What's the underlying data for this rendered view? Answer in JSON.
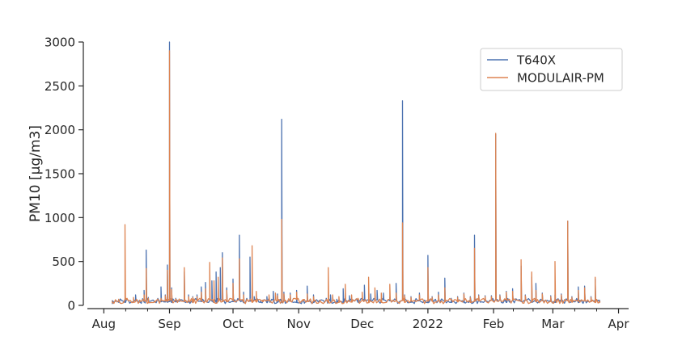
{
  "chart_data": {
    "type": "line",
    "title": "",
    "xlabel": "",
    "ylabel": "PM10 [µg/m3]",
    "ylim": [
      0,
      3000
    ],
    "xlim": [
      "2021-07-25",
      "2022-04-05"
    ],
    "grid": false,
    "legend_position": "top-right",
    "y_ticks": [
      0,
      500,
      1000,
      1500,
      2000,
      2500,
      3000
    ],
    "x_ticks": [
      {
        "date": "2021-08-01",
        "label": "Aug"
      },
      {
        "date": "2021-09-01",
        "label": "Sep"
      },
      {
        "date": "2021-10-01",
        "label": "Oct"
      },
      {
        "date": "2021-11-01",
        "label": "Nov"
      },
      {
        "date": "2021-12-01",
        "label": "Dec"
      },
      {
        "date": "2022-01-01",
        "label": "2022"
      },
      {
        "date": "2022-02-01",
        "label": "Feb"
      },
      {
        "date": "2022-03-01",
        "label": "Mar"
      },
      {
        "date": "2022-04-01",
        "label": "Apr"
      }
    ],
    "series": [
      {
        "name": "T640X",
        "color": "#4c72b0",
        "points": [
          [
            "2021-08-05",
            20
          ],
          [
            "2021-08-08",
            60
          ],
          [
            "2021-08-11",
            70
          ],
          [
            "2021-08-14",
            40
          ],
          [
            "2021-08-16",
            120
          ],
          [
            "2021-08-18",
            60
          ],
          [
            "2021-08-20",
            170
          ],
          [
            "2021-08-21",
            630
          ],
          [
            "2021-08-22",
            90
          ],
          [
            "2021-08-25",
            50
          ],
          [
            "2021-08-28",
            210
          ],
          [
            "2021-08-30",
            120
          ],
          [
            "2021-08-31",
            460
          ],
          [
            "2021-09-01",
            3000
          ],
          [
            "2021-09-02",
            200
          ],
          [
            "2021-09-04",
            80
          ],
          [
            "2021-09-08",
            380
          ],
          [
            "2021-09-10",
            120
          ],
          [
            "2021-09-12",
            100
          ],
          [
            "2021-09-14",
            120
          ],
          [
            "2021-09-16",
            210
          ],
          [
            "2021-09-18",
            260
          ],
          [
            "2021-09-21",
            280
          ],
          [
            "2021-09-23",
            380
          ],
          [
            "2021-09-25",
            430
          ],
          [
            "2021-09-26",
            600
          ],
          [
            "2021-09-28",
            200
          ],
          [
            "2021-10-01",
            300
          ],
          [
            "2021-10-04",
            800
          ],
          [
            "2021-10-06",
            150
          ],
          [
            "2021-10-09",
            550
          ],
          [
            "2021-10-11",
            100
          ],
          [
            "2021-10-14",
            50
          ],
          [
            "2021-10-17",
            100
          ],
          [
            "2021-10-20",
            160
          ],
          [
            "2021-10-22",
            130
          ],
          [
            "2021-10-24",
            2120
          ],
          [
            "2021-10-25",
            150
          ],
          [
            "2021-10-28",
            140
          ],
          [
            "2021-10-31",
            170
          ],
          [
            "2021-11-03",
            60
          ],
          [
            "2021-11-05",
            220
          ],
          [
            "2021-11-08",
            120
          ],
          [
            "2021-11-11",
            60
          ],
          [
            "2021-11-14",
            80
          ],
          [
            "2021-11-16",
            120
          ],
          [
            "2021-11-19",
            70
          ],
          [
            "2021-11-22",
            190
          ],
          [
            "2021-11-25",
            110
          ],
          [
            "2021-11-29",
            60
          ],
          [
            "2021-12-02",
            230
          ],
          [
            "2021-12-05",
            130
          ],
          [
            "2021-12-08",
            170
          ],
          [
            "2021-12-11",
            140
          ],
          [
            "2021-12-14",
            90
          ],
          [
            "2021-12-17",
            250
          ],
          [
            "2021-12-20",
            2330
          ],
          [
            "2021-12-21",
            120
          ],
          [
            "2021-12-24",
            100
          ],
          [
            "2021-12-28",
            140
          ],
          [
            "2022-01-01",
            570
          ],
          [
            "2022-01-03",
            100
          ],
          [
            "2022-01-06",
            150
          ],
          [
            "2022-01-09",
            310
          ],
          [
            "2022-01-12",
            80
          ],
          [
            "2022-01-15",
            100
          ],
          [
            "2022-01-18",
            140
          ],
          [
            "2022-01-21",
            100
          ],
          [
            "2022-01-23",
            800
          ],
          [
            "2022-01-25",
            120
          ],
          [
            "2022-01-28",
            110
          ],
          [
            "2022-01-31",
            110
          ],
          [
            "2022-02-02",
            1950
          ],
          [
            "2022-02-04",
            120
          ],
          [
            "2022-02-07",
            160
          ],
          [
            "2022-02-10",
            190
          ],
          [
            "2022-02-14",
            450
          ],
          [
            "2022-02-16",
            120
          ],
          [
            "2022-02-19",
            320
          ],
          [
            "2022-02-21",
            250
          ],
          [
            "2022-02-24",
            140
          ],
          [
            "2022-02-28",
            110
          ],
          [
            "2022-03-02",
            120
          ],
          [
            "2022-03-05",
            130
          ],
          [
            "2022-03-08",
            960
          ],
          [
            "2022-03-10",
            100
          ],
          [
            "2022-03-13",
            210
          ],
          [
            "2022-03-16",
            220
          ],
          [
            "2022-03-19",
            100
          ],
          [
            "2022-03-21",
            300
          ],
          [
            "2022-03-23",
            60
          ]
        ]
      },
      {
        "name": "MODULAIR-PM",
        "color": "#dd8452",
        "points": [
          [
            "2021-08-05",
            40
          ],
          [
            "2021-08-08",
            70
          ],
          [
            "2021-08-11",
            920
          ],
          [
            "2021-08-12",
            80
          ],
          [
            "2021-08-15",
            90
          ],
          [
            "2021-08-18",
            60
          ],
          [
            "2021-08-20",
            120
          ],
          [
            "2021-08-21",
            420
          ],
          [
            "2021-08-22",
            80
          ],
          [
            "2021-08-25",
            50
          ],
          [
            "2021-08-28",
            80
          ],
          [
            "2021-08-30",
            110
          ],
          [
            "2021-08-31",
            400
          ],
          [
            "2021-09-01",
            2900
          ],
          [
            "2021-09-02",
            180
          ],
          [
            "2021-09-04",
            70
          ],
          [
            "2021-09-08",
            430
          ],
          [
            "2021-09-10",
            100
          ],
          [
            "2021-09-12",
            90
          ],
          [
            "2021-09-14",
            100
          ],
          [
            "2021-09-16",
            150
          ],
          [
            "2021-09-18",
            190
          ],
          [
            "2021-09-20",
            490
          ],
          [
            "2021-09-22",
            280
          ],
          [
            "2021-09-24",
            320
          ],
          [
            "2021-09-26",
            540
          ],
          [
            "2021-09-28",
            170
          ],
          [
            "2021-10-01",
            250
          ],
          [
            "2021-10-04",
            530
          ],
          [
            "2021-10-06",
            120
          ],
          [
            "2021-10-10",
            680
          ],
          [
            "2021-10-12",
            160
          ],
          [
            "2021-10-15",
            60
          ],
          [
            "2021-10-18",
            120
          ],
          [
            "2021-10-21",
            140
          ],
          [
            "2021-10-22",
            110
          ],
          [
            "2021-10-24",
            980
          ],
          [
            "2021-10-25",
            130
          ],
          [
            "2021-10-28",
            120
          ],
          [
            "2021-10-31",
            150
          ],
          [
            "2021-11-03",
            50
          ],
          [
            "2021-11-05",
            130
          ],
          [
            "2021-11-08",
            100
          ],
          [
            "2021-11-11",
            60
          ],
          [
            "2021-11-15",
            430
          ],
          [
            "2021-11-17",
            120
          ],
          [
            "2021-11-20",
            100
          ],
          [
            "2021-11-23",
            240
          ],
          [
            "2021-11-26",
            120
          ],
          [
            "2021-11-29",
            80
          ],
          [
            "2021-12-01",
            150
          ],
          [
            "2021-12-04",
            320
          ],
          [
            "2021-12-07",
            200
          ],
          [
            "2021-12-10",
            140
          ],
          [
            "2021-12-14",
            240
          ],
          [
            "2021-12-17",
            140
          ],
          [
            "2021-12-20",
            940
          ],
          [
            "2021-12-21",
            110
          ],
          [
            "2021-12-24",
            90
          ],
          [
            "2021-12-28",
            120
          ],
          [
            "2022-01-01",
            430
          ],
          [
            "2022-01-03",
            90
          ],
          [
            "2022-01-06",
            120
          ],
          [
            "2022-01-09",
            200
          ],
          [
            "2022-01-12",
            70
          ],
          [
            "2022-01-15",
            90
          ],
          [
            "2022-01-18",
            130
          ],
          [
            "2022-01-21",
            90
          ],
          [
            "2022-01-23",
            650
          ],
          [
            "2022-01-25",
            110
          ],
          [
            "2022-01-28",
            100
          ],
          [
            "2022-01-31",
            100
          ],
          [
            "2022-02-02",
            1960
          ],
          [
            "2022-02-04",
            110
          ],
          [
            "2022-02-07",
            150
          ],
          [
            "2022-02-10",
            160
          ],
          [
            "2022-02-14",
            520
          ],
          [
            "2022-02-16",
            110
          ],
          [
            "2022-02-19",
            380
          ],
          [
            "2022-02-21",
            170
          ],
          [
            "2022-02-24",
            130
          ],
          [
            "2022-02-28",
            100
          ],
          [
            "2022-03-02",
            500
          ],
          [
            "2022-03-05",
            120
          ],
          [
            "2022-03-08",
            960
          ],
          [
            "2022-03-10",
            90
          ],
          [
            "2022-03-13",
            170
          ],
          [
            "2022-03-16",
            200
          ],
          [
            "2022-03-19",
            90
          ],
          [
            "2022-03-21",
            320
          ],
          [
            "2022-03-23",
            50
          ]
        ]
      }
    ]
  }
}
